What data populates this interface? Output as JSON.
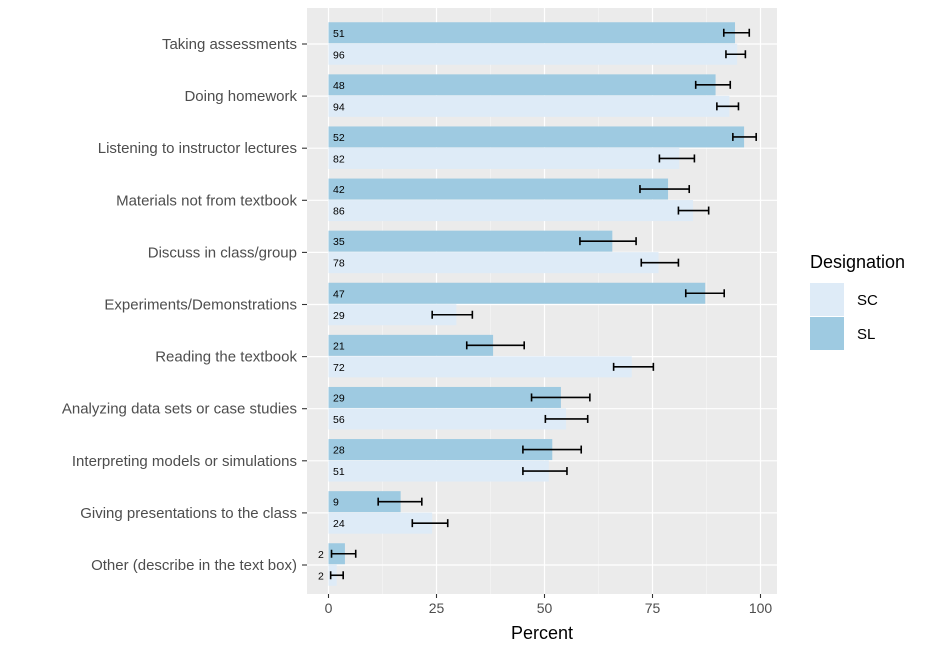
{
  "chart_data": {
    "type": "bar",
    "orientation": "horizontal",
    "categories": [
      "Taking assessments",
      "Doing homework",
      "Listening to instructor lectures",
      "Materials not from textbook",
      "Discuss in class/group",
      "Experiments/Demonstrations",
      "Reading the textbook",
      "Analyzing data sets or case studies",
      "Interpreting models or simulations",
      "Giving presentations to the class",
      "Other (describe in the text box)"
    ],
    "series": [
      {
        "name": "SL",
        "color": "#9ecae1",
        "values": [
          94.1,
          89.6,
          96.2,
          78.6,
          65.7,
          87.2,
          38.1,
          53.8,
          51.8,
          16.7,
          3.8
        ],
        "error_low": [
          91.5,
          85.0,
          93.6,
          72.1,
          58.2,
          82.7,
          32.0,
          47.0,
          45.0,
          11.5,
          0.7
        ],
        "error_high": [
          97.4,
          93.0,
          99.0,
          83.5,
          71.2,
          91.6,
          45.3,
          60.5,
          58.5,
          21.6,
          6.3
        ],
        "n": [
          51,
          48,
          52,
          42,
          35,
          47,
          21,
          29,
          28,
          9,
          2
        ]
      },
      {
        "name": "SC",
        "color": "#deebf7",
        "values": [
          94.6,
          92.8,
          81.2,
          84.4,
          76.4,
          29.6,
          70.2,
          55.0,
          51.0,
          24.0,
          1.9
        ],
        "error_low": [
          92.0,
          89.9,
          76.6,
          81.0,
          72.4,
          24.0,
          66.0,
          50.2,
          45.0,
          19.4,
          0.5
        ],
        "error_high": [
          96.5,
          94.9,
          84.7,
          88.0,
          81.0,
          33.3,
          75.2,
          60.0,
          55.2,
          27.6,
          3.4
        ],
        "n": [
          96,
          94,
          82,
          86,
          78,
          29,
          72,
          56,
          51,
          24,
          2
        ]
      }
    ],
    "xlabel": "Percent",
    "ylabel": "",
    "xlim": [
      0,
      100
    ],
    "xticks": [
      0,
      25,
      50,
      75,
      100
    ],
    "grid": true,
    "legend": {
      "title": "Designation",
      "position": "right",
      "entries": [
        "SC",
        "SL"
      ]
    }
  }
}
